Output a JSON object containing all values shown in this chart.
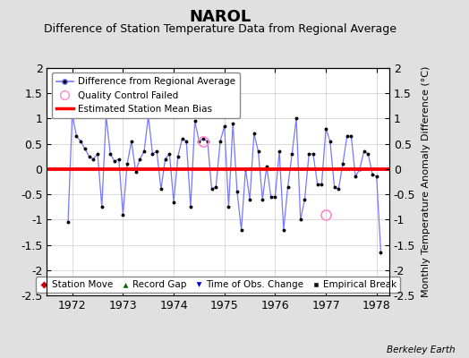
{
  "title": "NAROL",
  "subtitle": "Difference of Station Temperature Data from Regional Average",
  "ylabel": "Monthly Temperature Anomaly Difference (°C)",
  "watermark": "Berkeley Earth",
  "bias_value": 0.0,
  "ylim": [
    -2.5,
    2.0
  ],
  "xlim": [
    1971.5,
    1978.25
  ],
  "xticks": [
    1972,
    1973,
    1974,
    1975,
    1976,
    1977,
    1978
  ],
  "yticks": [
    -2.5,
    -2.0,
    -1.5,
    -1.0,
    -0.5,
    0.0,
    0.5,
    1.0,
    1.5,
    2.0
  ],
  "ytick_labels": [
    "-2.5",
    "-2",
    "-1.5",
    "-1",
    "-0.5",
    "0",
    "0.5",
    "1",
    "1.5",
    "2"
  ],
  "background_color": "#e0e0e0",
  "plot_bg_color": "#ffffff",
  "line_color": "#7777ff",
  "marker_color": "#000000",
  "bias_color": "#ff0000",
  "qc_color": "#ff88cc",
  "data": [
    1971.917,
    -1.05,
    1972.0,
    1.1,
    1972.083,
    0.65,
    1972.167,
    0.55,
    1972.25,
    0.4,
    1972.333,
    0.25,
    1972.417,
    0.2,
    1972.5,
    0.3,
    1972.583,
    -0.75,
    1972.667,
    1.05,
    1972.75,
    0.3,
    1972.833,
    0.15,
    1972.917,
    0.2,
    1973.0,
    -0.9,
    1973.083,
    0.1,
    1973.167,
    0.55,
    1973.25,
    -0.05,
    1973.333,
    0.2,
    1973.417,
    0.35,
    1973.5,
    1.05,
    1973.583,
    0.3,
    1973.667,
    0.35,
    1973.75,
    -0.4,
    1973.833,
    0.2,
    1973.917,
    0.3,
    1974.0,
    -0.65,
    1974.083,
    0.25,
    1974.167,
    0.6,
    1974.25,
    0.55,
    1974.333,
    -0.75,
    1974.417,
    0.95,
    1974.5,
    0.55,
    1974.583,
    0.6,
    1974.667,
    0.55,
    1974.75,
    -0.4,
    1974.833,
    -0.35,
    1974.917,
    0.55,
    1975.0,
    0.85,
    1975.083,
    -0.75,
    1975.167,
    0.9,
    1975.25,
    -0.45,
    1975.333,
    -1.2,
    1975.417,
    0.0,
    1975.5,
    -0.6,
    1975.583,
    0.7,
    1975.667,
    0.35,
    1975.75,
    -0.6,
    1975.833,
    0.05,
    1975.917,
    -0.55,
    1976.0,
    -0.55,
    1976.083,
    0.35,
    1976.167,
    -1.2,
    1976.25,
    -0.35,
    1976.333,
    0.3,
    1976.417,
    1.0,
    1976.5,
    -1.0,
    1976.583,
    -0.6,
    1976.667,
    0.3,
    1976.75,
    0.3,
    1976.833,
    -0.3,
    1976.917,
    -0.3,
    1977.0,
    0.8,
    1977.083,
    0.55,
    1977.167,
    -0.35,
    1977.25,
    -0.4,
    1977.333,
    0.1,
    1977.417,
    0.65,
    1977.5,
    0.65,
    1977.583,
    -0.15,
    1977.667,
    0.0,
    1977.75,
    0.35,
    1977.833,
    0.3,
    1977.917,
    -0.1,
    1978.0,
    -0.15,
    1978.083,
    -1.65
  ],
  "qc_points": [
    [
      1974.583,
      0.55
    ],
    [
      1977.0,
      -0.9
    ]
  ],
  "grid_color": "#cccccc",
  "tick_fontsize": 9,
  "title_fontsize": 13,
  "subtitle_fontsize": 9,
  "ylabel_fontsize": 8,
  "legend1_fontsize": 7.5,
  "legend2_fontsize": 7.5
}
